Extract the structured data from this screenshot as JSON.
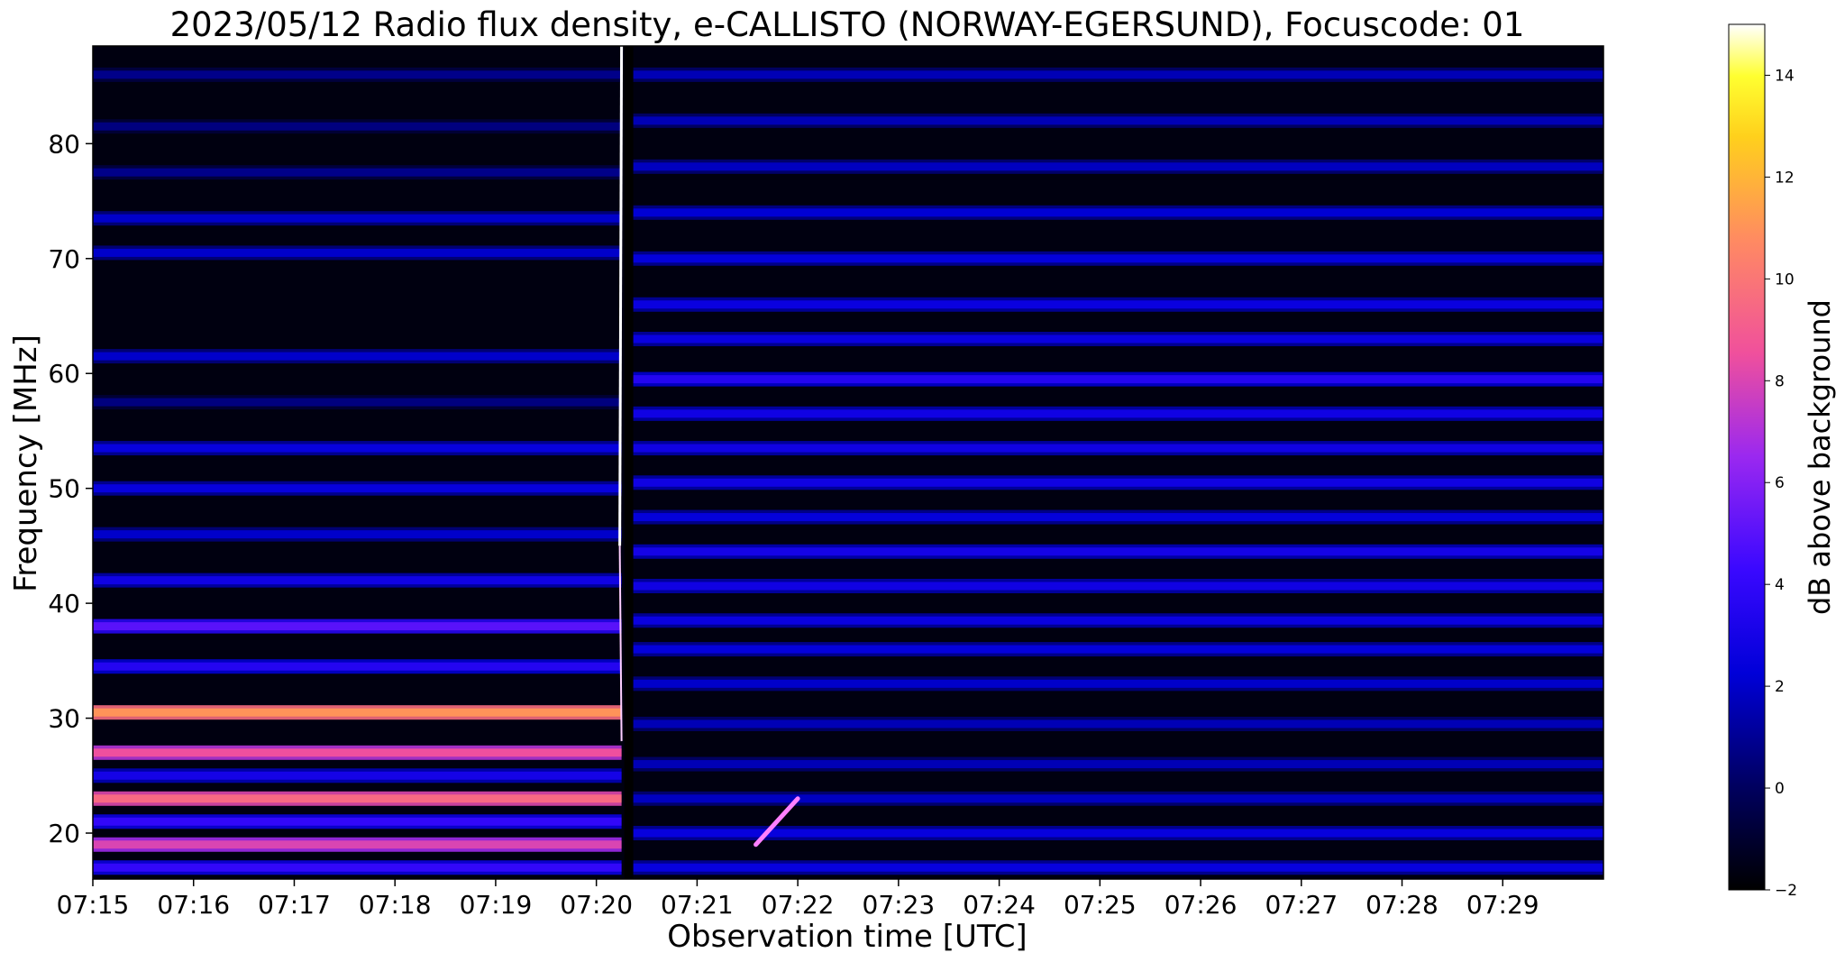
{
  "chart_data": {
    "type": "heatmap",
    "title": "2023/05/12  Radio flux density, e-CALLISTO (NORWAY-EGERSUND), Focuscode: 01",
    "xlabel": "Observation time [UTC]",
    "ylabel": "Frequency [MHz]",
    "x_range": [
      "07:15",
      "07:30"
    ],
    "ylim": [
      16,
      88.5
    ],
    "x_ticks": [
      "07:15",
      "07:16",
      "07:17",
      "07:18",
      "07:19",
      "07:20",
      "07:21",
      "07:22",
      "07:23",
      "07:24",
      "07:25",
      "07:26",
      "07:27",
      "07:28",
      "07:29"
    ],
    "y_ticks": [
      20,
      30,
      40,
      50,
      60,
      70,
      80
    ],
    "colorbar": {
      "label": "dB above background",
      "ticks": [
        -2,
        0,
        2,
        4,
        6,
        8,
        10,
        12,
        14
      ],
      "range": [
        -2,
        15
      ],
      "colormap": "gnuplot2"
    },
    "events": [
      {
        "type": "broadband spike",
        "time": "07:20:15"
      },
      {
        "type": "drifting burst",
        "time_start": "07:21:35",
        "time_end": "07:22:00",
        "freq_start": 19,
        "freq_end": 23
      }
    ],
    "bands_left": [
      {
        "f": 86,
        "v": 0.8
      },
      {
        "f": 81.5,
        "v": 0.6
      },
      {
        "f": 77.5,
        "v": 0.8
      },
      {
        "f": 73.5,
        "v": 2.0
      },
      {
        "f": 70.5,
        "v": 2.0
      },
      {
        "f": 61.5,
        "v": 2.0
      },
      {
        "f": 57.5,
        "v": 0.6
      },
      {
        "f": 53.5,
        "v": 2.5
      },
      {
        "f": 50,
        "v": 2.5
      },
      {
        "f": 46,
        "v": 2.0
      },
      {
        "f": 42,
        "v": 2.8
      },
      {
        "f": 38,
        "v": 5.0
      },
      {
        "f": 34.5,
        "v": 3.5
      },
      {
        "f": 30.5,
        "v": 11.0
      },
      {
        "f": 27,
        "v": 8.5
      },
      {
        "f": 25,
        "v": 3.0
      },
      {
        "f": 23,
        "v": 9.5
      },
      {
        "f": 21,
        "v": 4.0
      },
      {
        "f": 19,
        "v": 8.0
      },
      {
        "f": 17,
        "v": 4.0
      }
    ],
    "bands_right": [
      {
        "f": 86,
        "v": 1.6
      },
      {
        "f": 82,
        "v": 1.6
      },
      {
        "f": 78,
        "v": 1.8
      },
      {
        "f": 74,
        "v": 2.2
      },
      {
        "f": 70,
        "v": 2.4
      },
      {
        "f": 66,
        "v": 2.6
      },
      {
        "f": 63,
        "v": 2.6
      },
      {
        "f": 59.5,
        "v": 3.5
      },
      {
        "f": 56.5,
        "v": 2.8
      },
      {
        "f": 53.5,
        "v": 2.8
      },
      {
        "f": 50.5,
        "v": 2.8
      },
      {
        "f": 47.5,
        "v": 2.4
      },
      {
        "f": 44.5,
        "v": 3.0
      },
      {
        "f": 41.5,
        "v": 2.8
      },
      {
        "f": 38.5,
        "v": 2.6
      },
      {
        "f": 36,
        "v": 2.4
      },
      {
        "f": 33,
        "v": 2.0
      },
      {
        "f": 29.5,
        "v": 1.6
      },
      {
        "f": 26,
        "v": 1.6
      },
      {
        "f": 23,
        "v": 1.8
      },
      {
        "f": 20,
        "v": 2.5
      },
      {
        "f": 17,
        "v": 2.5
      }
    ]
  }
}
